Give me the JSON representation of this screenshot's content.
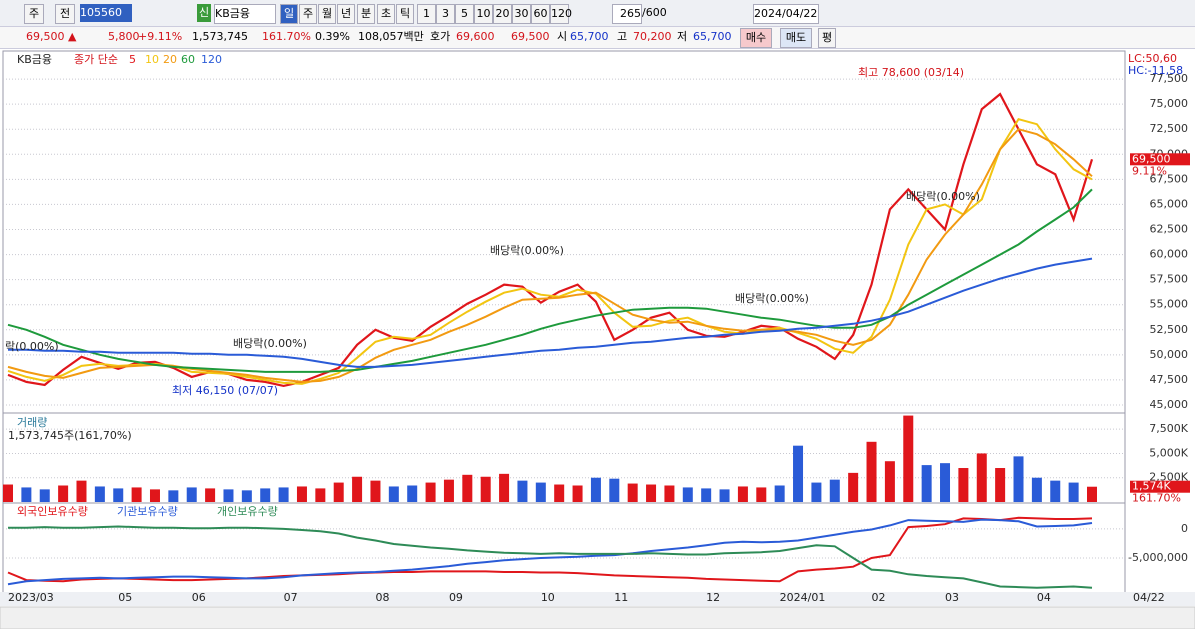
{
  "toolbar": {
    "period_type": "주",
    "prev": "전",
    "code": "105560",
    "credit": "신",
    "name": "KB금융",
    "periods": [
      "일",
      "주",
      "월",
      "년",
      "분",
      "초",
      "틱"
    ],
    "intervals": [
      "1",
      "3",
      "5",
      "10",
      "20",
      "30",
      "60",
      "120"
    ],
    "count": "265",
    "max": "/600",
    "date": "2024/04/22"
  },
  "quote": {
    "price": "69,500 ▲",
    "change": "5,800",
    "rate": "+9.11%",
    "volume": "1,573,745",
    "volume_rate": "161.70%",
    "turnover": "0.39%",
    "amount": "108,057백만",
    "bid_label": "호가",
    "ask": "69,600",
    "bid": "69,500",
    "open_label": "시",
    "open": "65,700",
    "high_label": "고",
    "high": "70,200",
    "low_label": "저",
    "low": "65,700",
    "buy": "매수",
    "sell": "매도",
    "avg": "평"
  },
  "chart_data": [
    {
      "type": "line",
      "title": "KB금융",
      "subtitle": "종가 단순",
      "ylim": [
        44300,
        80200
      ],
      "yticks": [
        {
          "value": 45000,
          "label": "45,000"
        },
        {
          "value": 47500,
          "label": "47,500"
        },
        {
          "value": 50000,
          "label": "50,000"
        },
        {
          "value": 52500,
          "label": "52,500"
        },
        {
          "value": 55000,
          "label": "55,000"
        },
        {
          "value": 57500,
          "label": "57,500"
        },
        {
          "value": 60000,
          "label": "60,000"
        },
        {
          "value": 62500,
          "label": "62,500"
        },
        {
          "value": 65000,
          "label": "65,000"
        },
        {
          "value": 67500,
          "label": "67,500"
        },
        {
          "value": 70000,
          "label": "70,000"
        },
        {
          "value": 72500,
          "label": "72,500"
        },
        {
          "value": 75000,
          "label": "75,000"
        },
        {
          "value": 77500,
          "label": "77,500"
        }
      ],
      "series": [
        {
          "name": "5",
          "color": "#e0161b",
          "values": [
            48000,
            47300,
            47000,
            48500,
            49800,
            49200,
            48600,
            49200,
            49300,
            48700,
            47800,
            48300,
            48100,
            47500,
            47300,
            46900,
            47300,
            48000,
            48700,
            51000,
            52500,
            51700,
            51400,
            52800,
            53900,
            55100,
            56000,
            57000,
            56800,
            55200,
            56300,
            57000,
            55300,
            51500,
            52500,
            53700,
            54200,
            52500,
            51900,
            51800,
            52300,
            52900,
            52700,
            51600,
            50800,
            49600,
            52000,
            57000,
            64500,
            66500,
            64500,
            62500,
            69000,
            74500,
            76000,
            72500,
            69000,
            68000,
            63500,
            69500
          ]
        },
        {
          "name": "10",
          "color": "#f2c511",
          "values": [
            48400,
            47800,
            47400,
            48000,
            48900,
            49100,
            48900,
            49000,
            49100,
            48900,
            48300,
            48200,
            48100,
            47800,
            47500,
            47200,
            47100,
            47600,
            48200,
            49700,
            51300,
            51800,
            51600,
            52000,
            53200,
            54300,
            55300,
            56200,
            56600,
            56000,
            55800,
            56500,
            56100,
            54200,
            52800,
            52900,
            53400,
            53700,
            52900,
            52300,
            52100,
            52500,
            52700,
            52200,
            51600,
            50600,
            50200,
            51800,
            55500,
            61000,
            64500,
            65000,
            64000,
            65500,
            70500,
            73500,
            73000,
            70500,
            68500,
            67500
          ]
        },
        {
          "name": "20",
          "color": "#f29a11",
          "values": [
            48800,
            48300,
            47900,
            47700,
            48200,
            48700,
            48800,
            48900,
            49000,
            48900,
            48600,
            48400,
            48200,
            48000,
            47700,
            47500,
            47300,
            47400,
            47800,
            48600,
            49700,
            50500,
            51000,
            51500,
            52300,
            53000,
            53800,
            54700,
            55500,
            55600,
            55700,
            56000,
            56200,
            55100,
            54000,
            53500,
            53200,
            53300,
            52900,
            52600,
            52400,
            52500,
            52500,
            52300,
            52000,
            51400,
            51000,
            51500,
            53000,
            56000,
            59500,
            62000,
            64000,
            67000,
            70500,
            72500,
            72000,
            71000,
            69500,
            67800
          ]
        },
        {
          "name": "60",
          "color": "#1e9a3c",
          "values": [
            53000,
            52500,
            51800,
            51000,
            50500,
            50000,
            49600,
            49300,
            49000,
            48800,
            48700,
            48600,
            48500,
            48400,
            48300,
            48300,
            48300,
            48300,
            48400,
            48500,
            48800,
            49100,
            49400,
            49800,
            50200,
            50600,
            51000,
            51500,
            52000,
            52600,
            53100,
            53500,
            53900,
            54200,
            54500,
            54600,
            54700,
            54700,
            54600,
            54300,
            54000,
            53700,
            53500,
            53200,
            52900,
            52700,
            52700,
            53000,
            53800,
            55000,
            56000,
            57000,
            58000,
            59000,
            60000,
            61000,
            62300,
            63500,
            64700,
            66500
          ]
        },
        {
          "name": "120",
          "color": "#2a5bd7",
          "values": [
            50500,
            50500,
            50400,
            50400,
            50300,
            50300,
            50200,
            50200,
            50200,
            50200,
            50100,
            50100,
            50000,
            50000,
            49900,
            49800,
            49600,
            49300,
            49000,
            48800,
            48800,
            48900,
            49000,
            49200,
            49400,
            49600,
            49800,
            50000,
            50200,
            50400,
            50500,
            50700,
            50800,
            51000,
            51200,
            51300,
            51500,
            51700,
            51800,
            52000,
            52100,
            52300,
            52400,
            52600,
            52700,
            52900,
            53100,
            53400,
            53800,
            54300,
            55000,
            55700,
            56400,
            57000,
            57600,
            58100,
            58600,
            59000,
            59300,
            59600
          ]
        }
      ],
      "annotations": [
        "최고 78,600 (03/14)",
        "최저 46,150 (07/07)",
        "배당락(0.00%)",
        "배당락(0.00%)",
        "배당락(0.00%)",
        "배당락(0.00%)",
        "락(0.00%)"
      ],
      "lc": "LC:50,60",
      "hc": "HC:-11,58",
      "price_tag": "69,500",
      "rate_tag": "9.11%"
    },
    {
      "type": "bar",
      "title": "거래량",
      "subtitle": "1,573,745주(161,70%)",
      "ylim": [
        0,
        8960
      ],
      "yticks": [
        {
          "value": 2500,
          "label": "2,500K"
        },
        {
          "value": 5000,
          "label": "5,000K"
        },
        {
          "value": 7500,
          "label": "7,500K"
        }
      ],
      "up_color": "#e0161b",
      "down_color": "#2a5bd7",
      "values": [
        1800,
        1500,
        1300,
        1700,
        2200,
        1600,
        1400,
        1500,
        1300,
        1200,
        1500,
        1400,
        1300,
        1200,
        1400,
        1500,
        1600,
        1400,
        2000,
        2600,
        2200,
        1600,
        1700,
        2000,
        2300,
        2800,
        2600,
        2900,
        2200,
        2000,
        1800,
        1700,
        2500,
        2400,
        1900,
        1800,
        1700,
        1500,
        1400,
        1300,
        1600,
        1500,
        1700,
        5800,
        2000,
        2300,
        3000,
        6200,
        4200,
        8900,
        3800,
        4000,
        3500,
        5000,
        3500,
        4700,
        2500,
        2200,
        2000,
        1574
      ],
      "volume_tag": "1,574K",
      "rate_tag": "161.70%"
    },
    {
      "type": "line",
      "ylim": [
        -10500000,
        4100000
      ],
      "yticks": [
        0,
        {
          "value": -5000000,
          "label": "-5,000,000"
        }
      ],
      "categories": [
        "2023/03",
        null,
        null,
        null,
        null,
        null,
        "05",
        null,
        null,
        null,
        "06",
        null,
        null,
        null,
        null,
        "07",
        null,
        null,
        null,
        null,
        "08",
        null,
        null,
        null,
        "09",
        null,
        null,
        null,
        null,
        "10",
        null,
        null,
        null,
        "11",
        null,
        null,
        null,
        null,
        "12",
        null,
        null,
        null,
        "2024/01",
        null,
        null,
        null,
        null,
        "02",
        null,
        null,
        null,
        "03",
        null,
        null,
        null,
        null,
        "04",
        null,
        null,
        null
      ],
      "last_date": "04/22",
      "series": [
        {
          "name": "외국인보유수량",
          "color": "#e0161b",
          "values": [
            -7500000,
            -8800000,
            -8900000,
            -9000000,
            -8700000,
            -8600000,
            -8500000,
            -8600000,
            -8700000,
            -8800000,
            -8800000,
            -8700000,
            -8600000,
            -8500000,
            -8300000,
            -8100000,
            -8000000,
            -7900000,
            -7800000,
            -7600000,
            -7500000,
            -7400000,
            -7400000,
            -7300000,
            -7300000,
            -7300000,
            -7300000,
            -7400000,
            -7400000,
            -7500000,
            -7500000,
            -7600000,
            -7800000,
            -8000000,
            -8100000,
            -8200000,
            -8300000,
            -8400000,
            -8600000,
            -8700000,
            -8800000,
            -8900000,
            -9000000,
            -7300000,
            -7000000,
            -6800000,
            -6500000,
            -5000000,
            -4500000,
            300000,
            500000,
            800000,
            1800000,
            1700000,
            1500000,
            1900000,
            1800000,
            1700000,
            1700000,
            1800000
          ]
        },
        {
          "name": "기관보유수량",
          "color": "#2a5bd7",
          "values": [
            -9500000,
            -9000000,
            -8800000,
            -8600000,
            -8500000,
            -8400000,
            -8500000,
            -8400000,
            -8300000,
            -8200000,
            -8200000,
            -8300000,
            -8400000,
            -8500000,
            -8500000,
            -8300000,
            -8000000,
            -7800000,
            -7600000,
            -7500000,
            -7400000,
            -7200000,
            -7000000,
            -6700000,
            -6400000,
            -6000000,
            -5700000,
            -5400000,
            -5200000,
            -5000000,
            -4900000,
            -4800000,
            -4600000,
            -4500000,
            -4200000,
            -3800000,
            -3500000,
            -3200000,
            -2800000,
            -2400000,
            -2200000,
            -2300000,
            -2200000,
            -2000000,
            -1500000,
            -1000000,
            -500000,
            -100000,
            600000,
            1500000,
            1400000,
            1300000,
            1200000,
            1600000,
            1500000,
            1300000,
            400000,
            500000,
            600000,
            1000000
          ]
        },
        {
          "name": "개인보유수량",
          "color": "#2e8b57",
          "values": [
            200000,
            200000,
            300000,
            200000,
            200000,
            300000,
            400000,
            300000,
            200000,
            200000,
            100000,
            100000,
            200000,
            200000,
            100000,
            0,
            -200000,
            -400000,
            -800000,
            -1500000,
            -2000000,
            -2600000,
            -2900000,
            -3200000,
            -3400000,
            -3700000,
            -3900000,
            -4100000,
            -4200000,
            -4300000,
            -4200000,
            -4300000,
            -4300000,
            -4300000,
            -4300000,
            -4200000,
            -4300000,
            -4400000,
            -4400000,
            -4200000,
            -4100000,
            -4000000,
            -3800000,
            -3300000,
            -2800000,
            -3000000,
            -5000000,
            -7000000,
            -7200000,
            -7800000,
            -8100000,
            -8300000,
            -8500000,
            -9200000,
            -9900000,
            -10000000,
            -10100000,
            -10000000,
            -9900000,
            -10100000
          ]
        }
      ]
    }
  ]
}
